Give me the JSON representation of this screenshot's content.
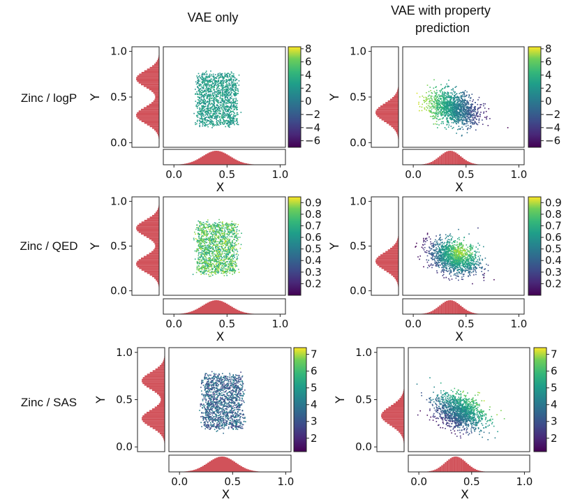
{
  "columns": [
    {
      "title": "VAE only"
    },
    {
      "title": "VAE with property prediction"
    }
  ],
  "rows": [
    {
      "label": "Zinc / logP"
    },
    {
      "label": "Zinc / QED"
    },
    {
      "label": "Zinc / SAS"
    }
  ],
  "chart_data": [
    {
      "type": "scatter",
      "row": 0,
      "col": 0,
      "xlabel": "X",
      "ylabel": "Y",
      "xlim": [
        -0.1,
        1.05
      ],
      "ylim": [
        -0.05,
        1.05
      ],
      "x_ticks": [
        "0.0",
        "0.5",
        "1.0"
      ],
      "y_ticks": [
        "0.0",
        "0.5",
        "1.0"
      ],
      "distribution": {
        "shape": "box",
        "center": [
          0.4,
          0.48
        ],
        "spread": [
          0.18,
          0.28
        ],
        "color_mode": "uniform"
      },
      "colorbar": {
        "range": [
          -7,
          8.3
        ],
        "ticks": [
          8,
          6,
          4,
          2,
          0,
          -2,
          -4,
          -6
        ],
        "tick_labels": [
          "8",
          "6",
          "4",
          "2",
          "0",
          "−2",
          "−4",
          "−6"
        ]
      },
      "marginal_x": {
        "center": 0.4,
        "sd": 0.13
      },
      "marginal_y": {
        "bimodal": true,
        "modes": [
          0.3,
          0.7
        ],
        "sd": 0.09
      }
    },
    {
      "type": "scatter",
      "row": 0,
      "col": 1,
      "xlabel": "X",
      "ylabel": "Y",
      "xlim": [
        -0.1,
        1.05
      ],
      "ylim": [
        -0.05,
        1.05
      ],
      "x_ticks": [
        "0.0",
        "0.5",
        "1.0"
      ],
      "y_ticks": [
        "0.0",
        "0.5",
        "1.0"
      ],
      "distribution": {
        "shape": "blob",
        "center": [
          0.38,
          0.38
        ],
        "spread": [
          0.17,
          0.15
        ],
        "color_mode": "gradient-left-high"
      },
      "colorbar": {
        "range": [
          -7,
          8.3
        ],
        "ticks": [
          8,
          6,
          4,
          2,
          0,
          -2,
          -4,
          -6
        ],
        "tick_labels": [
          "8",
          "6",
          "4",
          "2",
          "0",
          "−2",
          "−4",
          "−6"
        ]
      },
      "marginal_x": {
        "center": 0.35,
        "sd": 0.1
      },
      "marginal_y": {
        "bimodal": false,
        "modes": [
          0.33
        ],
        "sd": 0.1
      }
    },
    {
      "type": "scatter",
      "row": 1,
      "col": 0,
      "xlabel": "X",
      "ylabel": "Y",
      "xlim": [
        -0.1,
        1.05
      ],
      "ylim": [
        -0.05,
        1.05
      ],
      "x_ticks": [
        "0.0",
        "0.5",
        "1.0"
      ],
      "y_ticks": [
        "0.0",
        "0.5",
        "1.0"
      ],
      "distribution": {
        "shape": "box",
        "center": [
          0.4,
          0.48
        ],
        "spread": [
          0.18,
          0.28
        ],
        "color_mode": "high-noisy"
      },
      "colorbar": {
        "range": [
          0.1,
          0.95
        ],
        "ticks": [
          0.9,
          0.8,
          0.7,
          0.6,
          0.5,
          0.4,
          0.3,
          0.2
        ],
        "tick_labels": [
          "0.9",
          "0.8",
          "0.7",
          "0.6",
          "0.5",
          "0.4",
          "0.3",
          "0.2"
        ]
      },
      "marginal_x": {
        "center": 0.4,
        "sd": 0.13
      },
      "marginal_y": {
        "bimodal": true,
        "modes": [
          0.3,
          0.7
        ],
        "sd": 0.09
      }
    },
    {
      "type": "scatter",
      "row": 1,
      "col": 1,
      "xlabel": "X",
      "ylabel": "Y",
      "xlim": [
        -0.1,
        1.05
      ],
      "ylim": [
        -0.05,
        1.05
      ],
      "x_ticks": [
        "0.0",
        "0.5",
        "1.0"
      ],
      "y_ticks": [
        "0.0",
        "0.5",
        "1.0"
      ],
      "distribution": {
        "shape": "blob",
        "center": [
          0.38,
          0.38
        ],
        "spread": [
          0.17,
          0.15
        ],
        "color_mode": "center-high"
      },
      "colorbar": {
        "range": [
          0.1,
          0.95
        ],
        "ticks": [
          0.9,
          0.8,
          0.7,
          0.6,
          0.5,
          0.4,
          0.3,
          0.2
        ],
        "tick_labels": [
          "0.9",
          "0.8",
          "0.7",
          "0.6",
          "0.5",
          "0.4",
          "0.3",
          "0.2"
        ]
      },
      "marginal_x": {
        "center": 0.35,
        "sd": 0.1
      },
      "marginal_y": {
        "bimodal": false,
        "modes": [
          0.33
        ],
        "sd": 0.1
      }
    },
    {
      "type": "scatter",
      "row": 2,
      "col": 0,
      "xlabel": "X",
      "ylabel": "Y",
      "xlim": [
        -0.1,
        1.05
      ],
      "ylim": [
        -0.05,
        1.05
      ],
      "x_ticks": [
        "0.0",
        "0.5",
        "1.0"
      ],
      "y_ticks": [
        "0.0",
        "0.5",
        "1.0"
      ],
      "distribution": {
        "shape": "box",
        "center": [
          0.4,
          0.48
        ],
        "spread": [
          0.18,
          0.28
        ],
        "color_mode": "low-noisy"
      },
      "colorbar": {
        "range": [
          1.2,
          7.4
        ],
        "ticks": [
          7,
          6,
          5,
          4,
          3,
          2
        ],
        "tick_labels": [
          "7",
          "6",
          "5",
          "4",
          "3",
          "2"
        ]
      },
      "marginal_x": {
        "center": 0.4,
        "sd": 0.13
      },
      "marginal_y": {
        "bimodal": true,
        "modes": [
          0.3,
          0.7
        ],
        "sd": 0.09
      }
    },
    {
      "type": "scatter",
      "row": 2,
      "col": 1,
      "xlabel": "X",
      "ylabel": "Y",
      "xlim": [
        -0.1,
        1.05
      ],
      "ylim": [
        -0.05,
        1.05
      ],
      "x_ticks": [
        "0.0",
        "0.5",
        "1.0"
      ],
      "y_ticks": [
        "0.0",
        "0.5",
        "1.0"
      ],
      "distribution": {
        "shape": "blob",
        "center": [
          0.38,
          0.38
        ],
        "spread": [
          0.17,
          0.15
        ],
        "color_mode": "gradient-diagonal"
      },
      "colorbar": {
        "range": [
          1.2,
          7.4
        ],
        "ticks": [
          7,
          6,
          5,
          4,
          3,
          2
        ],
        "tick_labels": [
          "7",
          "6",
          "5",
          "4",
          "3",
          "2"
        ]
      },
      "marginal_x": {
        "center": 0.35,
        "sd": 0.1
      },
      "marginal_y": {
        "bimodal": false,
        "modes": [
          0.33
        ],
        "sd": 0.1
      }
    }
  ]
}
